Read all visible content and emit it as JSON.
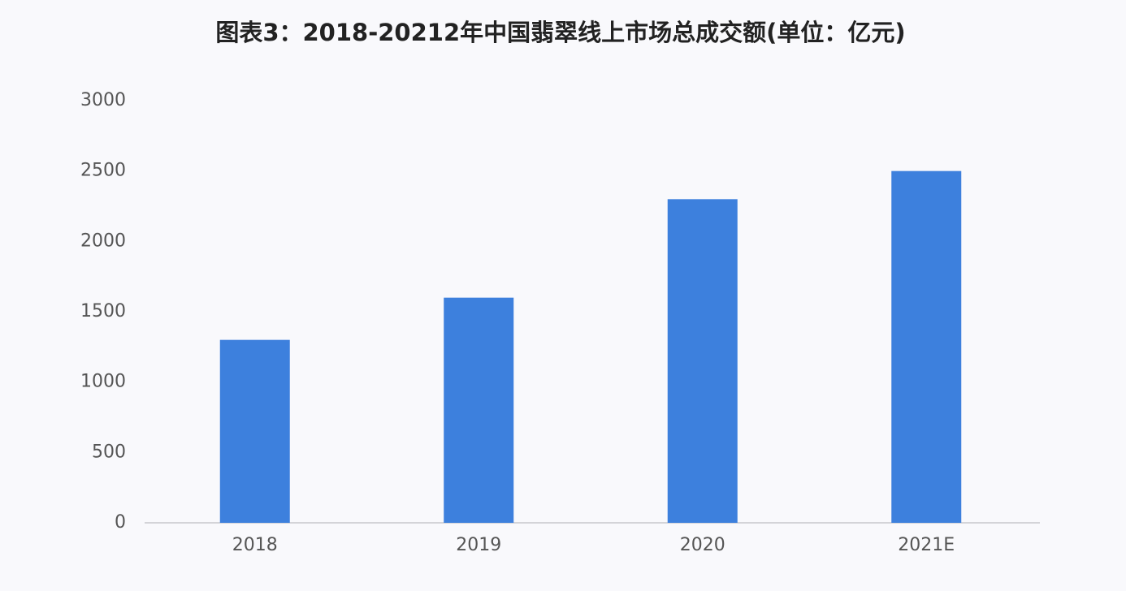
{
  "chart_data": {
    "type": "bar",
    "title": "图表3：2018-20212年中国翡翠线上市场总成交额(单位：亿元)",
    "categories": [
      "2018",
      "2019",
      "2020",
      "2021E"
    ],
    "values": [
      1300,
      1600,
      2300,
      2500
    ],
    "color": "#3d80dd",
    "ylim": [
      0,
      3000
    ],
    "yticks": [
      0,
      500,
      1000,
      1500,
      2000,
      2500,
      3000
    ],
    "grid": false
  }
}
